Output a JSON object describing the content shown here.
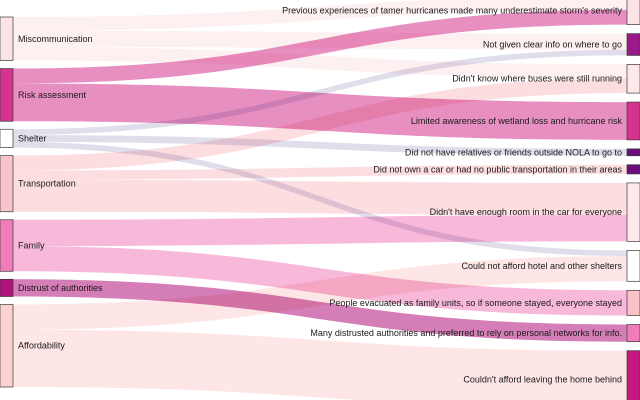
{
  "chart_data": {
    "type": "sankey",
    "title": "",
    "sources": [
      {
        "id": "s1",
        "label": "Miscommunication",
        "color": "#fbe3e6"
      },
      {
        "id": "s2",
        "label": "Risk assessment",
        "color": "#d6338f"
      },
      {
        "id": "s3",
        "label": "Shelter",
        "color": "#ffffff"
      },
      {
        "id": "s4",
        "label": "Transportation",
        "color": "#f9c3c9"
      },
      {
        "id": "s5",
        "label": "Family",
        "color": "#f07db9"
      },
      {
        "id": "s6",
        "label": "Distrust of authorities",
        "color": "#b0127a"
      },
      {
        "id": "s7",
        "label": "Affordability",
        "color": "#fcd2cf"
      }
    ],
    "targets": [
      {
        "id": "t1",
        "label": "Previous experiences of tamer hurricanes made many underestimate storm's severity",
        "color": "#fbe3e6"
      },
      {
        "id": "t2",
        "label": "Not given clear info on where to go",
        "color": "#9a1a8a"
      },
      {
        "id": "t3",
        "label": "Didn't know where buses were still running",
        "color": "#fde9ea"
      },
      {
        "id": "t4",
        "label": "Limited awareness of wetland loss and hurricane risk",
        "color": "#d6338f"
      },
      {
        "id": "t5",
        "label": "Did not have relatives or friends outside NOLA to go to",
        "color": "#6a0f7a"
      },
      {
        "id": "t6",
        "label": "Did not own a car or had no public transportation in their areas",
        "color": "#6a0f7a"
      },
      {
        "id": "t7",
        "label": "Didn't have enough room in the car for everyone",
        "color": "#fde9ea"
      },
      {
        "id": "t8",
        "label": "Could not afford hotel and other shelters",
        "color": "#ffffff"
      },
      {
        "id": "t9",
        "label": "People evacuated as family units, so if someone stayed, everyone stayed",
        "color": "#f9c3c9"
      },
      {
        "id": "t10",
        "label": "Many distrusted authorities and preferred to rely on personal networks for info.",
        "color": "#f07db9"
      },
      {
        "id": "t11",
        "label": "Couldn't afford leaving the home behind",
        "color": "#c2187f"
      }
    ],
    "flows": [
      {
        "from": "s1",
        "to": "t1",
        "value": 1.2
      },
      {
        "from": "s1",
        "to": "t2",
        "value": 1.4
      },
      {
        "from": "s1",
        "to": "t3",
        "value": 1.2
      },
      {
        "from": "s2",
        "to": "t1",
        "value": 1.3
      },
      {
        "from": "s2",
        "to": "t4",
        "value": 3.3
      },
      {
        "from": "s3",
        "to": "t2",
        "value": 0.5
      },
      {
        "from": "s3",
        "to": "t5",
        "value": 0.6
      },
      {
        "from": "s3",
        "to": "t8",
        "value": 0.5
      },
      {
        "from": "s4",
        "to": "t3",
        "value": 1.3
      },
      {
        "from": "s4",
        "to": "t6",
        "value": 0.8
      },
      {
        "from": "s4",
        "to": "t7",
        "value": 2.8
      },
      {
        "from": "s5",
        "to": "t7",
        "value": 2.3
      },
      {
        "from": "s5",
        "to": "t9",
        "value": 2.2
      },
      {
        "from": "s6",
        "to": "t10",
        "value": 1.5
      },
      {
        "from": "s7",
        "to": "t8",
        "value": 2.2
      },
      {
        "from": "s7",
        "to": "t11",
        "value": 5.0
      }
    ]
  }
}
